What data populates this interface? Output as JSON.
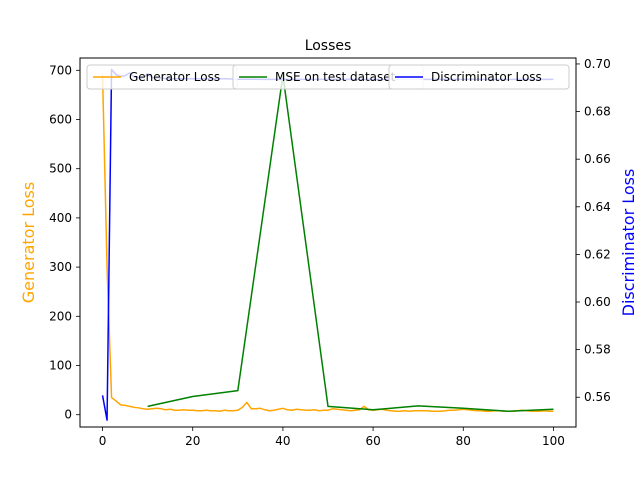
{
  "chart_data": {
    "type": "line",
    "title": "Losses",
    "xlabel": "",
    "ylabel_left": "Generator Loss",
    "ylabel_right": "Discriminator Loss",
    "xlim": [
      -5,
      105
    ],
    "ylim_left": [
      -25,
      725
    ],
    "ylim_right": [
      0.5475,
      0.7025
    ],
    "x_ticks": [
      0,
      20,
      40,
      60,
      80,
      100
    ],
    "y_left_ticks": [
      0,
      100,
      200,
      300,
      400,
      500,
      600,
      700
    ],
    "y_right_ticks": [
      0.56,
      0.58,
      0.6,
      0.62,
      0.64,
      0.66,
      0.68,
      0.7
    ],
    "grid": false,
    "legend_placement": "top",
    "colors": {
      "generator": "#ffa500",
      "mse": "#008000",
      "discriminator": "#0000ff",
      "left_label": "#ffa500",
      "right_label": "#0000ff"
    },
    "series": [
      {
        "name": "Generator Loss",
        "axis": "left",
        "x": [
          0,
          1,
          2,
          3,
          4,
          5,
          6,
          7,
          8,
          9,
          10,
          11,
          12,
          13,
          14,
          15,
          16,
          17,
          18,
          19,
          20,
          21,
          22,
          23,
          24,
          25,
          26,
          27,
          28,
          29,
          30,
          31,
          32,
          33,
          34,
          35,
          36,
          37,
          38,
          39,
          40,
          41,
          42,
          43,
          44,
          45,
          46,
          47,
          48,
          49,
          50,
          51,
          52,
          53,
          54,
          55,
          56,
          57,
          58,
          59,
          60,
          61,
          62,
          63,
          64,
          65,
          66,
          67,
          68,
          69,
          70,
          71,
          72,
          73,
          74,
          75,
          76,
          77,
          78,
          79,
          80,
          81,
          82,
          83,
          84,
          85,
          86,
          87,
          88,
          89,
          90,
          91,
          92,
          93,
          94,
          95,
          96,
          97,
          98,
          99,
          100
        ],
        "y": [
          690,
          300,
          35,
          28,
          20,
          19,
          17,
          15,
          14,
          12,
          11,
          12,
          13,
          12,
          10,
          11,
          9,
          9,
          10,
          9,
          9,
          8,
          8,
          9,
          8,
          8,
          7,
          9,
          8,
          8,
          9,
          15,
          25,
          12,
          12,
          13,
          10,
          8,
          9,
          11,
          13,
          10,
          9,
          11,
          10,
          9,
          9,
          10,
          8,
          9,
          9,
          12,
          11,
          10,
          9,
          8,
          9,
          10,
          17,
          10,
          9,
          10,
          11,
          9,
          8,
          7,
          7,
          8,
          7,
          8,
          8,
          8,
          8,
          7,
          7,
          7,
          8,
          9,
          9,
          10,
          11,
          10,
          9,
          8,
          8,
          7,
          7,
          8,
          8,
          7,
          7,
          7,
          8,
          9,
          8,
          7,
          7,
          7,
          8,
          7,
          7
        ]
      },
      {
        "name": "MSE on test dataset",
        "axis": "left",
        "x": [
          10,
          20,
          30,
          40,
          50,
          60,
          70,
          80,
          90,
          100
        ],
        "y": [
          17,
          37,
          49,
          690,
          17,
          10,
          18,
          13,
          7,
          11
        ]
      },
      {
        "name": "Discriminator Loss",
        "axis": "right",
        "x": [
          0,
          1,
          2,
          3,
          4,
          5,
          6,
          7,
          8,
          9,
          10,
          11,
          12,
          13,
          14,
          15,
          16,
          17,
          18,
          19,
          20,
          21,
          22,
          23,
          24,
          25,
          26,
          27,
          28,
          29,
          30,
          31,
          32,
          33,
          34,
          35,
          36,
          37,
          38,
          39,
          40,
          41,
          42,
          43,
          44,
          45,
          46,
          47,
          48,
          49,
          50,
          51,
          52,
          53,
          54,
          55,
          56,
          57,
          58,
          59,
          60,
          61,
          62,
          63,
          64,
          65,
          66,
          67,
          68,
          69,
          70,
          71,
          72,
          73,
          74,
          75,
          76,
          77,
          78,
          79,
          80,
          81,
          82,
          83,
          84,
          85,
          86,
          87,
          88,
          89,
          90,
          91,
          92,
          93,
          94,
          95,
          96,
          97,
          98,
          99,
          100
        ],
        "y": [
          0.5608,
          0.5504,
          0.6977,
          0.6955,
          0.6948,
          0.6951,
          0.6962,
          0.6945,
          0.6942,
          0.6942,
          0.6959,
          0.6942,
          0.6942,
          0.6942,
          0.6938,
          0.6938,
          0.6938,
          0.6938,
          0.6938,
          0.6938,
          0.6938,
          0.6938,
          0.6938,
          0.6938,
          0.6938,
          0.6938,
          0.6938,
          0.6938,
          0.6938,
          0.6936,
          0.6936,
          0.6936,
          0.6936,
          0.6936,
          0.6936,
          0.6935,
          0.6935,
          0.6935,
          0.6935,
          0.6935,
          0.6935,
          0.6935,
          0.6935,
          0.6935,
          0.6935,
          0.6935,
          0.6935,
          0.6935,
          0.6935,
          0.6935,
          0.6935,
          0.6935,
          0.6935,
          0.6935,
          0.6935,
          0.6935,
          0.6935,
          0.6935,
          0.6935,
          0.6935,
          0.6935,
          0.6935,
          0.6935,
          0.6935,
          0.6935,
          0.6935,
          0.6935,
          0.6935,
          0.6935,
          0.6935,
          0.6935,
          0.6935,
          0.6935,
          0.6935,
          0.6935,
          0.6935,
          0.6935,
          0.6935,
          0.6935,
          0.6935,
          0.6935,
          0.6935,
          0.6935,
          0.6935,
          0.6935,
          0.6935,
          0.6935,
          0.6935,
          0.6935,
          0.6935,
          0.6935,
          0.6935,
          0.6935,
          0.6935,
          0.6935,
          0.6935,
          0.6935,
          0.6935,
          0.6935,
          0.6935,
          0.6935
        ]
      }
    ]
  }
}
